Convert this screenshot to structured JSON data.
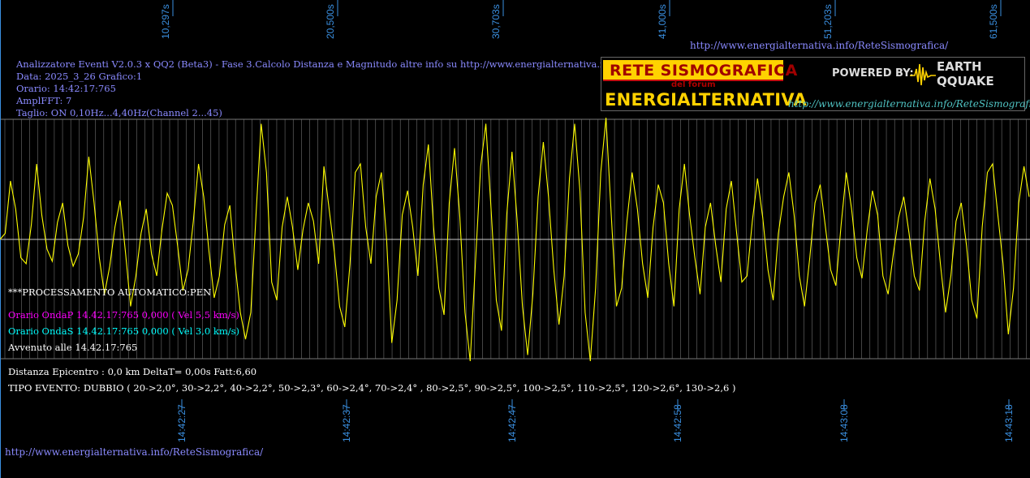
{
  "header": {
    "line1": "Analizzatore Eventi V2.0.3 x QQ2 (Beta3) - Fase 3.Calcolo Distanza e Magnitudo altre info su http://www.energialternativa.info/ReteSism",
    "line2": "Data: 2025_3_26 Grafico:1",
    "line3": "Orario: 14:42:17:765",
    "line4": "AmplFFT: 7",
    "line5": "Taglio: ON 0,10Hz...4,40Hz",
    "line5b": "(Channel 2...45)"
  },
  "top_url": "http://www.energialternativa.info/ReteSismografica/",
  "bottom_url": "http://www.energialternativa.info/ReteSismografica/",
  "logo": {
    "title1": "RETE SISMOGRAFICA",
    "subtitle": "del forum",
    "title2": "ENERGIALTERNATIVA",
    "powered": "POWERED BY:",
    "eq_top": "EARTH",
    "eq_bottom": "QQUAKE",
    "url": "http://www.energialternativa.info/ReteSismografica"
  },
  "processing": {
    "status": "***PROCESSAMENTO AUTOMATICO:PEN",
    "onda_p": "Orario OndaP 14.42.17:765  0,000 ( Vel 5,5 km/s)",
    "onda_s": "Orario OndaS 14.42.17:765  0,000 ( Vel 3,0 km/s)",
    "avvenuto": "Avvenuto alle 14.42.17:765",
    "distanza": "Distanza Epicentro : 0,0 km DeltaT= 0,00s  Fatt:6,60",
    "tipo": "TIPO EVENTO: DUBBIO ( 20->2,0°, 30->2,2°, 40->2,2°, 50->2,3°, 60->2,4°, 70->2,4° , 80->2,5°, 90->2,5°, 100->2,5°, 110->2,5°, 120->2,6°, 130->2,6 )"
  },
  "colors": {
    "trace": "#ffff00",
    "grid": "#707070",
    "axis_text": "#3a8fe0",
    "onda_p": "#ff00ff",
    "onda_s": "#00ffff"
  },
  "chart_data": {
    "type": "line",
    "top_ticks": [
      "10,297s",
      "20,500s",
      "30,703s",
      "41,000s",
      "51,203s",
      "61,500s"
    ],
    "bottom_ticks": [
      "14:42:27",
      "14:42:37",
      "14:42:47",
      "14:42:58",
      "14:43:08",
      "14:43:18"
    ],
    "grid": true,
    "trace_color": "#ffff00",
    "series": [
      {
        "values": [
          0.0,
          0.05,
          0.48,
          0.25,
          -0.15,
          -0.2,
          0.12,
          0.62,
          0.2,
          -0.08,
          -0.18,
          0.14,
          0.3,
          -0.05,
          -0.22,
          -0.12,
          0.18,
          0.68,
          0.3,
          -0.15,
          -0.45,
          -0.22,
          0.1,
          0.32,
          -0.1,
          -0.55,
          -0.3,
          0.05,
          0.25,
          -0.12,
          -0.3,
          0.08,
          0.38,
          0.28,
          -0.05,
          -0.42,
          -0.25,
          0.15,
          0.62,
          0.35,
          -0.1,
          -0.48,
          -0.3,
          0.12,
          0.28,
          -0.2,
          -0.6,
          -0.82,
          -0.6,
          0.2,
          0.95,
          0.55,
          -0.35,
          -0.5,
          0.1,
          0.35,
          0.1,
          -0.25,
          0.08,
          0.3,
          0.15,
          -0.2,
          0.6,
          0.25,
          -0.1,
          -0.55,
          -0.72,
          -0.2,
          0.55,
          0.62,
          0.1,
          -0.2,
          0.35,
          0.55,
          0.0,
          -0.85,
          -0.5,
          0.2,
          0.4,
          0.1,
          -0.3,
          0.45,
          0.78,
          0.1,
          -0.4,
          -0.62,
          0.3,
          0.75,
          0.2,
          -0.6,
          -1.0,
          -0.2,
          0.6,
          0.95,
          0.25,
          -0.5,
          -0.75,
          0.2,
          0.72,
          0.15,
          -0.55,
          -0.95,
          -0.45,
          0.35,
          0.8,
          0.35,
          -0.25,
          -0.7,
          -0.3,
          0.5,
          0.95,
          0.4,
          -0.6,
          -1.0,
          -0.4,
          0.55,
          1.0,
          0.2,
          -0.55,
          -0.4,
          0.15,
          0.55,
          0.25,
          -0.2,
          -0.48,
          0.1,
          0.45,
          0.3,
          -0.2,
          -0.55,
          0.25,
          0.62,
          0.2,
          -0.15,
          -0.45,
          0.1,
          0.3,
          -0.05,
          -0.35,
          0.25,
          0.48,
          0.05,
          -0.35,
          -0.3,
          0.15,
          0.5,
          0.18,
          -0.25,
          -0.5,
          0.05,
          0.35,
          0.55,
          0.2,
          -0.3,
          -0.55,
          -0.15,
          0.3,
          0.45,
          0.1,
          -0.25,
          -0.38,
          0.12,
          0.55,
          0.25,
          -0.15,
          -0.32,
          0.08,
          0.4,
          0.2,
          -0.3,
          -0.45,
          -0.12,
          0.18,
          0.35,
          0.05,
          -0.3,
          -0.42,
          0.15,
          0.5,
          0.25,
          -0.2,
          -0.6,
          -0.3,
          0.15,
          0.3,
          -0.05,
          -0.5,
          -0.65,
          0.1,
          0.55,
          0.62,
          0.2,
          -0.2,
          -0.78,
          -0.4,
          0.3,
          0.6,
          0.35
        ]
      }
    ]
  }
}
